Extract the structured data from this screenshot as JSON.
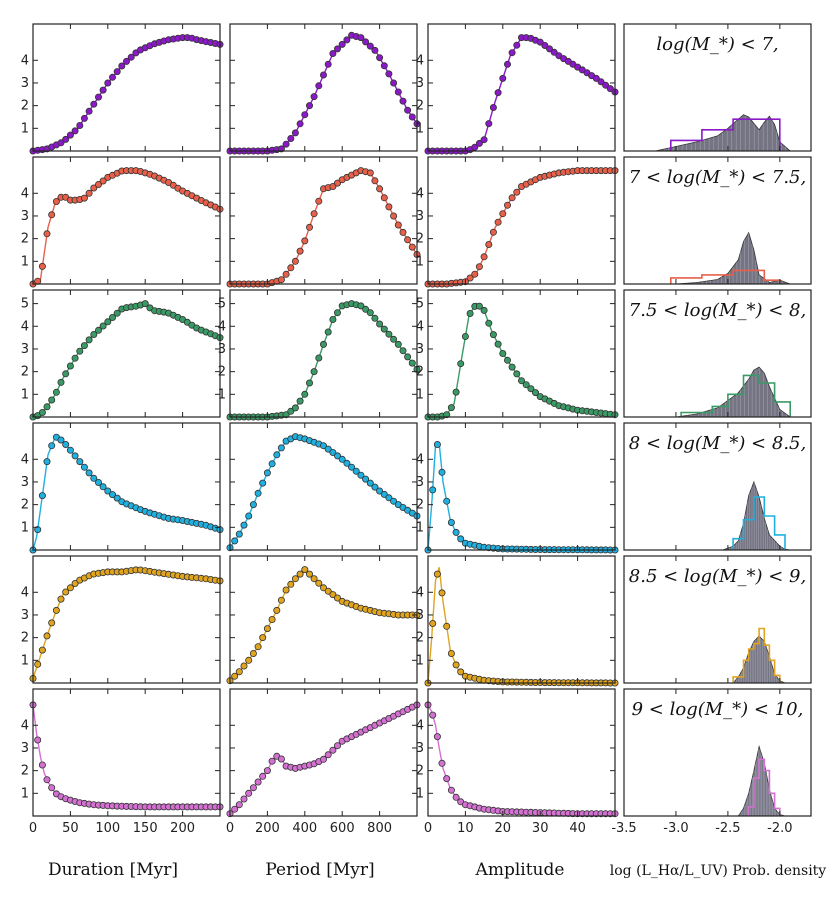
{
  "column_labels": {
    "duration": "Duration [Myr]",
    "period": "Period [Myr]",
    "amplitude": "Amplitude",
    "density": "log (L_Hα/L_UV) Prob. density"
  },
  "colors": [
    "#8b19c8",
    "#e8604a",
    "#3a9a65",
    "#1fb0e0",
    "#e0a41e",
    "#d470d2"
  ],
  "chart_data": {
    "type": "line",
    "grid": "6 rows x 4 columns of small-multiple panels",
    "y_ticks": [
      1,
      2,
      3,
      4,
      5
    ],
    "columns": [
      {
        "name": "Duration",
        "xlabel": "Duration [Myr]",
        "xlim": [
          0,
          250
        ],
        "xticks": [
          0,
          50,
          100,
          150,
          200
        ]
      },
      {
        "name": "Period",
        "xlabel": "Period [Myr]",
        "xlim": [
          0,
          1000
        ],
        "xticks": [
          0,
          200,
          400,
          600,
          800
        ]
      },
      {
        "name": "Amplitude",
        "xlabel": "Amplitude",
        "xlim": [
          0,
          50
        ],
        "xticks": [
          0,
          10,
          20,
          30,
          40
        ]
      },
      {
        "name": "Density",
        "xlabel": "log (L_Hα/L_UV) Prob. density",
        "xlim": [
          -3.5,
          -1.7
        ],
        "xticks": [
          -3.5,
          -3.0,
          -2.5,
          -2.0
        ]
      }
    ],
    "rows": [
      {
        "label": "log(M_*) < 7,",
        "color": "#8b19c8",
        "duration": {
          "x": [
            0,
            20,
            40,
            60,
            80,
            100,
            120,
            140,
            160,
            180,
            200,
            210,
            220,
            250
          ],
          "y": [
            0,
            0.1,
            0.4,
            1.0,
            2.0,
            3.0,
            3.8,
            4.4,
            4.7,
            4.9,
            5.0,
            5.0,
            4.9,
            4.7
          ]
        },
        "period": {
          "x": [
            0,
            100,
            200,
            280,
            350,
            450,
            550,
            650,
            700,
            780,
            850,
            950,
            1000
          ],
          "y": [
            0,
            0,
            0,
            0.1,
            0.8,
            2.4,
            4.3,
            5.1,
            5.0,
            4.4,
            3.4,
            1.8,
            1.2
          ]
        },
        "amplitude": {
          "x": [
            0,
            5,
            10,
            12,
            15,
            18,
            22,
            25,
            27,
            30,
            35,
            40,
            45,
            50
          ],
          "y": [
            0,
            0,
            0,
            0.1,
            0.5,
            2.2,
            4.2,
            5.0,
            5.0,
            4.8,
            4.2,
            3.7,
            3.2,
            2.6
          ]
        },
        "density": {
          "kde": {
            "x": [
              -3.2,
              -3.0,
              -2.8,
              -2.6,
              -2.5,
              -2.4,
              -2.35,
              -2.3,
              -2.2,
              -2.15,
              -2.1,
              -2.05,
              -2.0,
              -1.9
            ],
            "y": [
              0,
              0.06,
              0.12,
              0.2,
              0.3,
              0.42,
              0.48,
              0.45,
              0.28,
              0.38,
              0.46,
              0.35,
              0.12,
              0
            ]
          },
          "hist": {
            "edges": [
              -3.05,
              -2.75,
              -2.45,
              -2.0
            ],
            "y": [
              0.14,
              0.28,
              0.42
            ]
          }
        }
      },
      {
        "label": "7 < log(M_*) < 7.5,",
        "color": "#e8604a",
        "duration": {
          "x": [
            0,
            10,
            20,
            30,
            40,
            50,
            60,
            70,
            80,
            100,
            120,
            140,
            160,
            180,
            200,
            230,
            250
          ],
          "y": [
            0,
            0.2,
            2.5,
            3.6,
            3.9,
            3.7,
            3.7,
            3.8,
            4.2,
            4.7,
            5.0,
            5.0,
            4.8,
            4.5,
            4.1,
            3.6,
            3.3
          ]
        },
        "period": {
          "x": [
            0,
            100,
            200,
            280,
            350,
            400,
            450,
            500,
            550,
            600,
            700,
            750,
            800,
            900,
            1000
          ],
          "y": [
            0,
            0,
            0,
            0.2,
            1.0,
            1.9,
            3.1,
            4.2,
            4.3,
            4.6,
            5.0,
            4.9,
            4.2,
            2.6,
            1.3
          ]
        },
        "amplitude": {
          "x": [
            0,
            5,
            10,
            13,
            15,
            18,
            22,
            25,
            30,
            35,
            40,
            45,
            50
          ],
          "y": [
            0,
            0,
            0.1,
            0.5,
            1.2,
            2.5,
            3.7,
            4.3,
            4.7,
            4.9,
            5.0,
            5.0,
            5.0
          ]
        },
        "density": {
          "kde": {
            "x": [
              -3.0,
              -2.8,
              -2.6,
              -2.5,
              -2.4,
              -2.35,
              -2.3,
              -2.25,
              -2.2,
              -2.1,
              -2.0,
              -1.9
            ],
            "y": [
              0,
              0.02,
              0.06,
              0.14,
              0.32,
              0.56,
              0.68,
              0.45,
              0.12,
              0.02,
              0.05,
              0
            ]
          },
          "hist": {
            "edges": [
              -3.05,
              -2.75,
              -2.45,
              -2.15,
              -2.0
            ],
            "y": [
              0.08,
              0.12,
              0.18,
              0.05
            ]
          }
        }
      },
      {
        "label": "7.5 < log(M_*) < 8,",
        "color": "#3a9a65",
        "duration": {
          "x": [
            0,
            10,
            20,
            30,
            40,
            60,
            80,
            100,
            120,
            140,
            150,
            160,
            180,
            200,
            220,
            250
          ],
          "y": [
            0,
            0.1,
            0.5,
            1.0,
            1.7,
            2.8,
            3.6,
            4.2,
            4.8,
            4.9,
            5.0,
            4.7,
            4.6,
            4.3,
            3.9,
            3.5
          ]
        },
        "period": {
          "x": [
            0,
            100,
            200,
            300,
            350,
            400,
            450,
            500,
            550,
            600,
            650,
            700,
            750,
            800,
            900,
            1000
          ],
          "y": [
            0,
            0,
            0,
            0.1,
            0.4,
            1.0,
            2.0,
            3.2,
            4.3,
            4.9,
            5.0,
            4.9,
            4.6,
            4.1,
            3.2,
            2.1
          ]
        },
        "amplitude": {
          "x": [
            0,
            3,
            5,
            7,
            9,
            11,
            13,
            15,
            17,
            20,
            25,
            30,
            35,
            40,
            50
          ],
          "y": [
            0,
            0,
            0.1,
            0.6,
            2.6,
            4.5,
            5.0,
            4.7,
            3.8,
            2.8,
            1.6,
            0.9,
            0.5,
            0.3,
            0.1
          ]
        },
        "density": {
          "kde": {
            "x": [
              -3.0,
              -2.8,
              -2.6,
              -2.5,
              -2.4,
              -2.3,
              -2.25,
              -2.2,
              -2.15,
              -2.1,
              -2.0,
              -1.9
            ],
            "y": [
              0,
              0.04,
              0.12,
              0.22,
              0.32,
              0.5,
              0.62,
              0.66,
              0.58,
              0.4,
              0.1,
              0
            ]
          },
          "hist": {
            "edges": [
              -2.95,
              -2.65,
              -2.5,
              -2.35,
              -2.2,
              -2.05,
              -1.9
            ],
            "y": [
              0.06,
              0.14,
              0.3,
              0.55,
              0.45,
              0.2
            ]
          }
        }
      },
      {
        "label": "8 < log(M_*) < 8.5,",
        "color": "#1fb0e0",
        "duration": {
          "x": [
            0,
            5,
            10,
            20,
            30,
            40,
            60,
            80,
            100,
            120,
            150,
            180,
            200,
            230,
            250
          ],
          "y": [
            0,
            0.6,
            1.8,
            4.2,
            5.0,
            4.8,
            4.0,
            3.2,
            2.6,
            2.1,
            1.7,
            1.4,
            1.3,
            1.1,
            0.9
          ]
        },
        "period": {
          "x": [
            0,
            50,
            100,
            150,
            200,
            250,
            300,
            350,
            400,
            500,
            600,
            700,
            800,
            900,
            1000
          ],
          "y": [
            0.1,
            0.7,
            1.5,
            2.5,
            3.4,
            4.2,
            4.8,
            5.0,
            4.9,
            4.6,
            4.0,
            3.3,
            2.6,
            2.0,
            1.5
          ]
        },
        "amplitude": {
          "x": [
            0,
            1,
            2,
            3,
            4,
            6,
            8,
            10,
            15,
            20,
            30,
            40,
            50
          ],
          "y": [
            0,
            2.0,
            4.6,
            4.7,
            3.0,
            1.3,
            0.6,
            0.3,
            0.12,
            0.05,
            0.02,
            0.01,
            0
          ]
        },
        "density": {
          "kde": {
            "x": [
              -2.55,
              -2.45,
              -2.4,
              -2.35,
              -2.3,
              -2.25,
              -2.2,
              -2.15,
              -2.1,
              -2.0,
              -1.95,
              -1.9
            ],
            "y": [
              0,
              0.05,
              0.12,
              0.35,
              0.72,
              0.9,
              0.7,
              0.42,
              0.2,
              0.05,
              0.01,
              0
            ]
          },
          "hist": {
            "edges": [
              -2.45,
              -2.35,
              -2.25,
              -2.15,
              -2.05,
              -1.95
            ],
            "y": [
              0.15,
              0.4,
              0.7,
              0.45,
              0.2
            ]
          }
        }
      },
      {
        "label": "8.5 < log(M_*) < 9,",
        "color": "#e0a41e",
        "duration": {
          "x": [
            0,
            10,
            20,
            30,
            40,
            60,
            80,
            100,
            120,
            140,
            160,
            180,
            200,
            230,
            250
          ],
          "y": [
            0.2,
            1.2,
            2.2,
            3.1,
            3.9,
            4.5,
            4.8,
            4.9,
            4.9,
            5.0,
            4.9,
            4.8,
            4.7,
            4.6,
            4.5
          ]
        },
        "period": {
          "x": [
            0,
            50,
            100,
            150,
            200,
            250,
            300,
            350,
            400,
            450,
            500,
            550,
            600,
            700,
            800,
            900,
            1000
          ],
          "y": [
            0.1,
            0.5,
            1.0,
            1.6,
            2.4,
            3.2,
            4.1,
            4.6,
            5.0,
            4.6,
            4.2,
            3.9,
            3.6,
            3.3,
            3.1,
            3.0,
            3.0
          ]
        },
        "amplitude": {
          "x": [
            0,
            1,
            2,
            3,
            4,
            6,
            8,
            10,
            15,
            20,
            30,
            40,
            50
          ],
          "y": [
            0,
            2.0,
            4.5,
            5.1,
            3.6,
            1.4,
            0.6,
            0.3,
            0.12,
            0.05,
            0.02,
            0.01,
            0
          ]
        },
        "density": {
          "kde": {
            "x": [
              -2.45,
              -2.4,
              -2.35,
              -2.3,
              -2.25,
              -2.2,
              -2.15,
              -2.1,
              -2.05,
              -2.0,
              -1.95
            ],
            "y": [
              0,
              0.08,
              0.2,
              0.4,
              0.55,
              0.62,
              0.55,
              0.35,
              0.12,
              0.03,
              0
            ]
          },
          "hist": {
            "edges": [
              -2.45,
              -2.35,
              -2.3,
              -2.25,
              -2.2,
              -2.15,
              -2.1,
              -2.05,
              -2.0
            ],
            "y": [
              0.08,
              0.3,
              0.45,
              0.52,
              0.72,
              0.5,
              0.3,
              0.1
            ]
          }
        }
      },
      {
        "label": "9 < log(M_*) < 10,",
        "color": "#d470d2",
        "duration": {
          "x": [
            0,
            5,
            10,
            15,
            20,
            30,
            40,
            60,
            80,
            100,
            150,
            200,
            250
          ],
          "y": [
            4.9,
            3.6,
            2.6,
            1.9,
            1.5,
            1.0,
            0.8,
            0.6,
            0.5,
            0.45,
            0.4,
            0.4,
            0.4
          ]
        },
        "period": {
          "x": [
            0,
            50,
            100,
            150,
            200,
            230,
            260,
            300,
            350,
            400,
            450,
            500,
            550,
            600,
            700,
            800,
            900,
            1000
          ],
          "y": [
            0.1,
            0.5,
            1.0,
            1.5,
            2.0,
            2.5,
            2.7,
            2.2,
            2.1,
            2.2,
            2.3,
            2.5,
            2.9,
            3.3,
            3.7,
            4.1,
            4.5,
            4.9
          ]
        },
        "amplitude": {
          "x": [
            0,
            1,
            2,
            3,
            4,
            6,
            8,
            10,
            15,
            20,
            30,
            40,
            50
          ],
          "y": [
            4.9,
            4.6,
            4.0,
            3.0,
            2.1,
            1.2,
            0.7,
            0.5,
            0.3,
            0.2,
            0.15,
            0.1,
            0.1
          ]
        },
        "density": {
          "kde": {
            "x": [
              -2.4,
              -2.35,
              -2.3,
              -2.25,
              -2.2,
              -2.15,
              -2.1,
              -2.05,
              -2.0,
              -1.95
            ],
            "y": [
              0,
              0.1,
              0.3,
              0.6,
              0.92,
              0.7,
              0.35,
              0.1,
              0.02,
              0
            ]
          },
          "hist": {
            "edges": [
              -2.3,
              -2.25,
              -2.2,
              -2.15,
              -2.1,
              -2.05,
              -2.0
            ],
            "y": [
              0.12,
              0.5,
              0.75,
              0.6,
              0.3,
              0.1
            ]
          }
        }
      }
    ]
  }
}
